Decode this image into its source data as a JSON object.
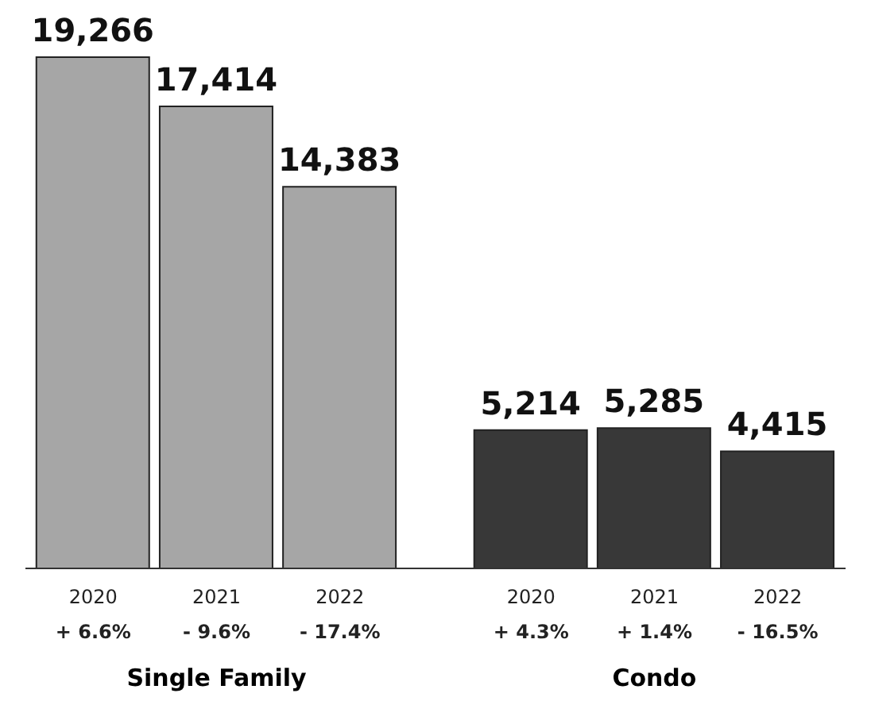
{
  "chart_data": {
    "type": "bar",
    "categories": [
      "2020\n+ 6.6%",
      "2021\n- 9.6%",
      "2022\n- 17.4%",
      "2020\n+ 4.3%",
      "2021\n+ 1.4%",
      "2022\n- 16.5%"
    ],
    "values": [
      19266,
      17414,
      14383,
      5214,
      5285,
      4415
    ],
    "colors": [
      "#a6a6a6",
      "#a6a6a6",
      "#a6a6a6",
      "#383838",
      "#383838",
      "#383838"
    ],
    "value_labels": [
      "19,266",
      "17,414",
      "14,383",
      "5,214",
      "5,285",
      "4,415"
    ],
    "annotations": [
      "Single Family",
      "Condo"
    ]
  }
}
